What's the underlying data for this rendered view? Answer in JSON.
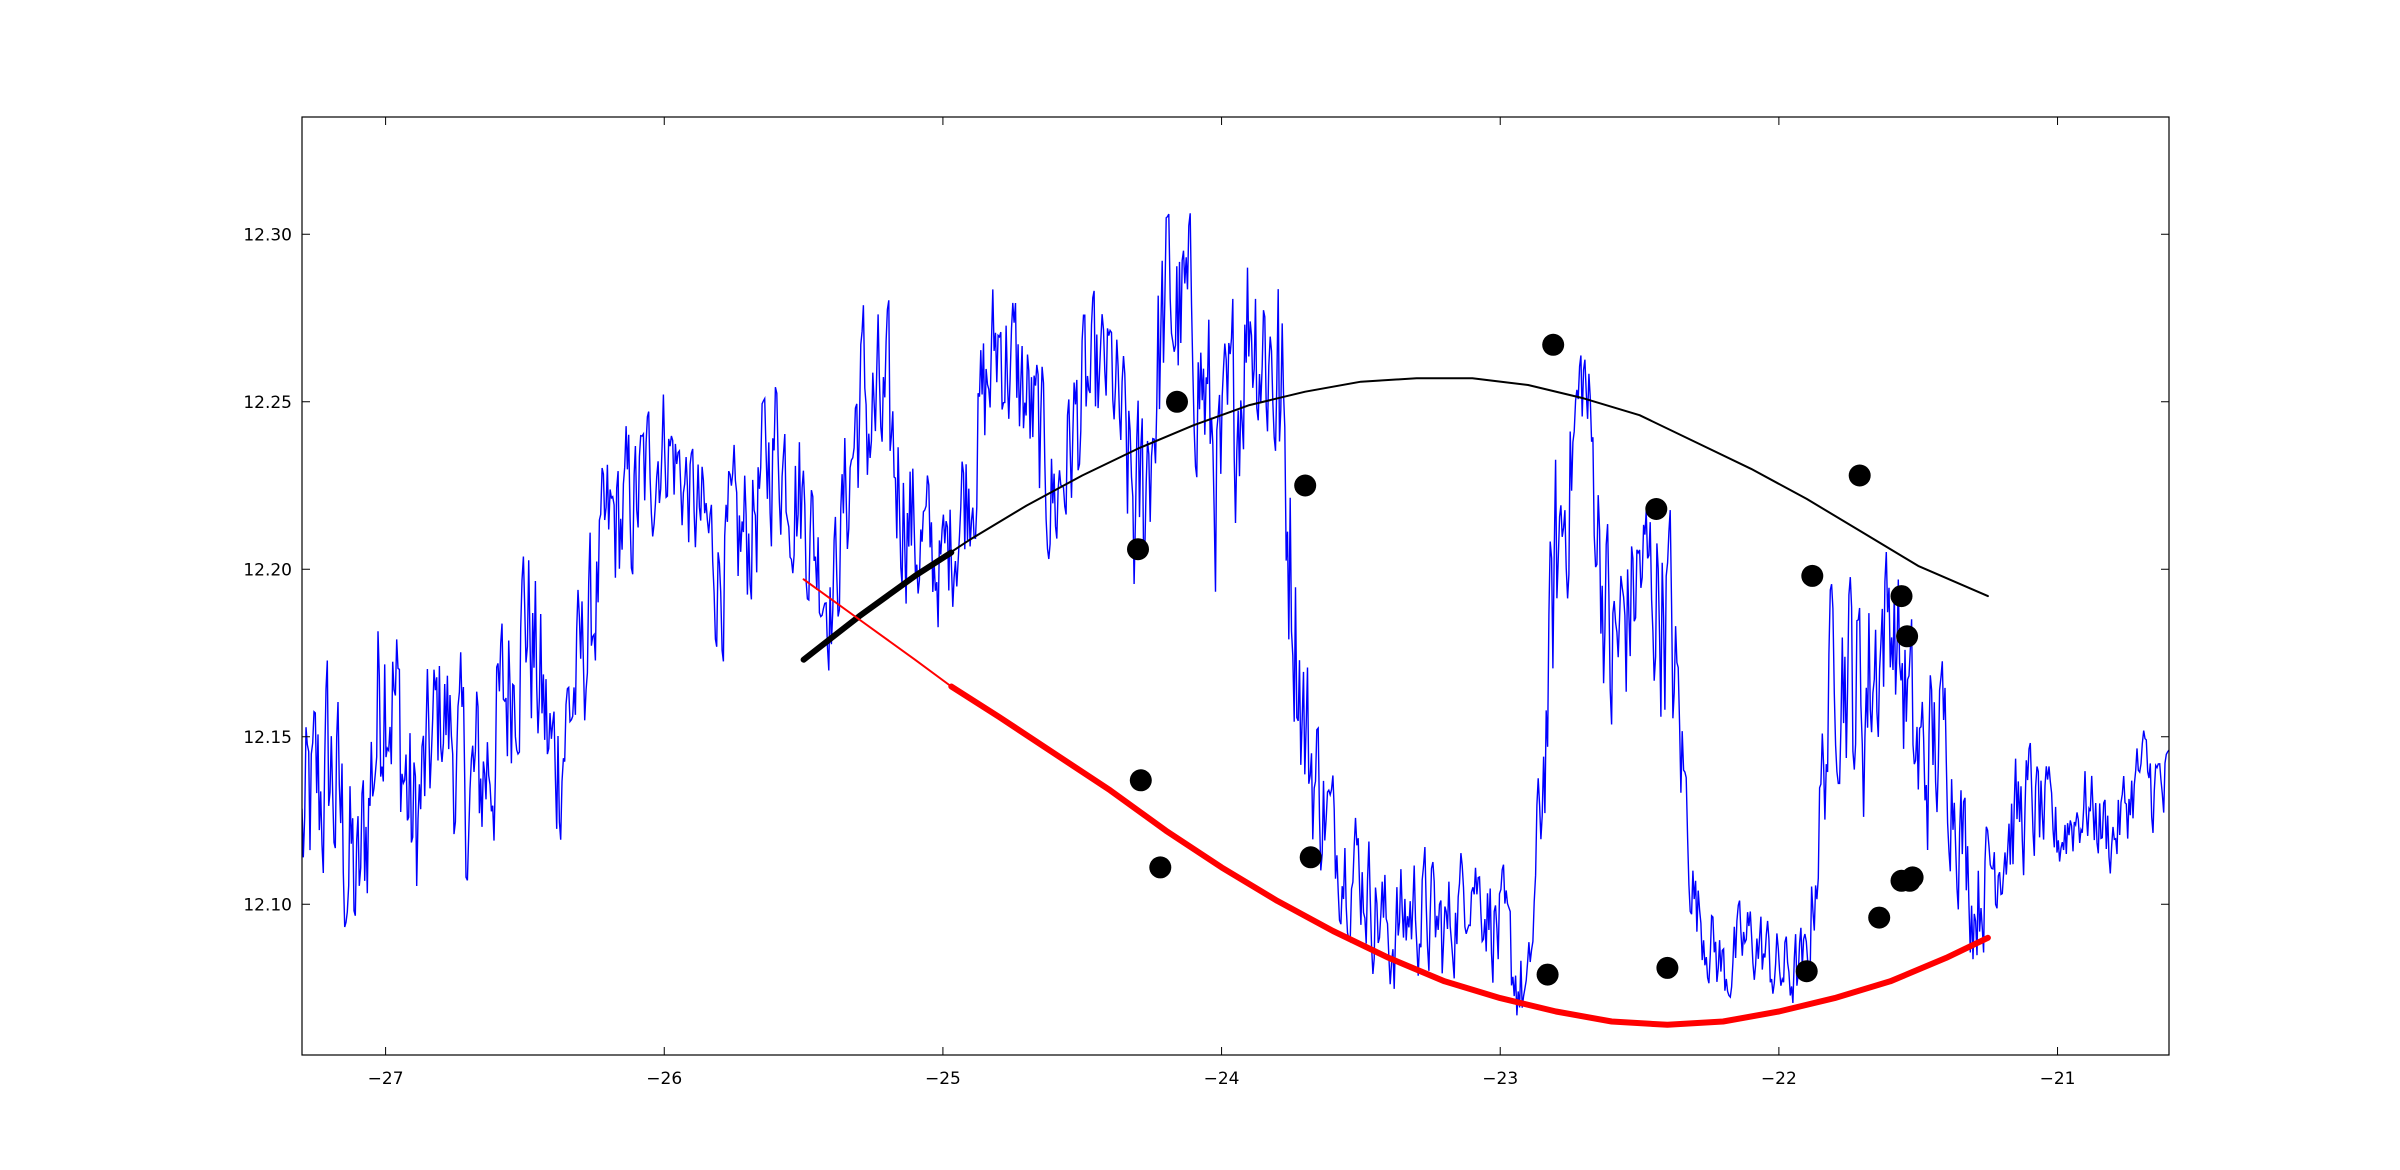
{
  "chart_data": {
    "type": "line",
    "title": "",
    "xlabel": "",
    "ylabel": "",
    "xlim": [
      -27.3,
      -20.6
    ],
    "ylim": [
      12.055,
      12.335
    ],
    "grid": false,
    "legend": "none",
    "x_ticks": [
      -27,
      -26,
      -25,
      -24,
      -23,
      -22,
      -21
    ],
    "x_tick_labels": [
      "−27",
      "−26",
      "−25",
      "−24",
      "−23",
      "−22",
      "−21"
    ],
    "y_ticks": [
      12.1,
      12.15,
      12.2,
      12.25,
      12.3
    ],
    "y_tick_labels": [
      "12.10",
      "12.15",
      "12.20",
      "12.25",
      "12.30"
    ],
    "series": [
      {
        "kind": "noisy-line",
        "color": "#0000ff",
        "x": [
          -27.3,
          -27.2,
          -27.1,
          -27.0,
          -26.9,
          -26.8,
          -26.7,
          -26.6,
          -26.5,
          -26.4,
          -26.3,
          -26.2,
          -26.1,
          -26.0,
          -25.9,
          -25.8,
          -25.7,
          -25.6,
          -25.5,
          -25.4,
          -25.3,
          -25.2,
          -25.1,
          -25.0,
          -24.9,
          -24.8,
          -24.7,
          -24.6,
          -24.5,
          -24.4,
          -24.3,
          -24.2,
          -24.1,
          -24.0,
          -23.9,
          -23.8,
          -23.7,
          -23.6,
          -23.5,
          -23.4,
          -23.3,
          -23.2,
          -23.1,
          -23.0,
          -22.9,
          -22.8,
          -22.7,
          -22.6,
          -22.5,
          -22.4,
          -22.3,
          -22.2,
          -22.1,
          -22.0,
          -21.9,
          -21.8,
          -21.7,
          -21.6,
          -21.5,
          -21.4,
          -21.3,
          -21.2,
          -21.1,
          -21.0,
          -20.9,
          -20.8,
          -20.7,
          -20.6
        ],
        "y": [
          12.12,
          12.14,
          12.1,
          12.18,
          12.12,
          12.16,
          12.13,
          12.15,
          12.19,
          12.14,
          12.17,
          12.21,
          12.22,
          12.24,
          12.22,
          12.2,
          12.21,
          12.24,
          12.22,
          12.19,
          12.25,
          12.24,
          12.21,
          12.2,
          12.23,
          12.27,
          12.25,
          12.22,
          12.25,
          12.26,
          12.21,
          12.28,
          12.27,
          12.22,
          12.28,
          12.26,
          12.15,
          12.12,
          12.11,
          12.09,
          12.1,
          12.09,
          12.11,
          12.09,
          12.07,
          12.2,
          12.26,
          12.17,
          12.2,
          12.19,
          12.1,
          12.08,
          12.09,
          12.08,
          12.08,
          12.18,
          12.16,
          12.19,
          12.14,
          12.15,
          12.1,
          12.12,
          12.13,
          12.12,
          12.13,
          12.12,
          12.14,
          12.13
        ],
        "amplitude": [
          0.05,
          0.06,
          0.05,
          0.06,
          0.05,
          0.04,
          0.05,
          0.05,
          0.05,
          0.05,
          0.04,
          0.04,
          0.04,
          0.03,
          0.03,
          0.04,
          0.04,
          0.04,
          0.04,
          0.03,
          0.05,
          0.05,
          0.04,
          0.03,
          0.04,
          0.04,
          0.04,
          0.04,
          0.04,
          0.03,
          0.06,
          0.05,
          0.05,
          0.06,
          0.05,
          0.07,
          0.05,
          0.03,
          0.03,
          0.03,
          0.03,
          0.03,
          0.02,
          0.03,
          0.02,
          0.06,
          0.03,
          0.06,
          0.04,
          0.06,
          0.02,
          0.02,
          0.02,
          0.02,
          0.02,
          0.05,
          0.06,
          0.04,
          0.05,
          0.04,
          0.03,
          0.03,
          0.03,
          0.02,
          0.02,
          0.02,
          0.02,
          0.03
        ]
      },
      {
        "kind": "line",
        "color": "#000000",
        "x": [
          -25.5,
          -25.3,
          -25.1,
          -24.9,
          -24.7,
          -24.5,
          -24.3,
          -24.1,
          -23.9,
          -23.7,
          -23.5,
          -23.3,
          -23.1,
          -22.9,
          -22.7,
          -22.5,
          -22.3,
          -22.1,
          -21.9,
          -21.7,
          -21.5,
          -21.25
        ],
        "y": [
          12.173,
          12.186,
          12.198,
          12.209,
          12.219,
          12.228,
          12.236,
          12.243,
          12.249,
          12.253,
          12.256,
          12.257,
          12.257,
          12.255,
          12.251,
          12.246,
          12.238,
          12.23,
          12.221,
          12.211,
          12.201,
          12.192
        ]
      },
      {
        "kind": "thick-line",
        "color": "#000000",
        "x": [
          -25.5,
          -25.3,
          -25.1,
          -24.97
        ],
        "y": [
          12.173,
          12.186,
          12.198,
          12.205
        ]
      },
      {
        "kind": "line",
        "color": "#ff0000",
        "x": [
          -25.5,
          -25.3,
          -25.1,
          -24.97
        ],
        "y": [
          12.197,
          12.185,
          12.173,
          12.165
        ]
      },
      {
        "kind": "thick-line",
        "color": "#ff0000",
        "x": [
          -24.97,
          -24.8,
          -24.6,
          -24.4,
          -24.2,
          -24.0,
          -23.8,
          -23.6,
          -23.4,
          -23.2,
          -23.0,
          -22.8,
          -22.6,
          -22.4,
          -22.2,
          -22.0,
          -21.8,
          -21.6,
          -21.4,
          -21.25
        ],
        "y": [
          12.165,
          12.156,
          12.145,
          12.134,
          12.122,
          12.111,
          12.101,
          12.092,
          12.084,
          12.077,
          12.072,
          12.068,
          12.065,
          12.064,
          12.065,
          12.068,
          12.072,
          12.077,
          12.084,
          12.09
        ]
      },
      {
        "kind": "markers",
        "color": "#000000",
        "x": [
          -24.3,
          -24.29,
          -24.22,
          -24.16,
          -23.7,
          -23.68,
          -22.83,
          -22.81,
          -22.44,
          -22.4,
          -21.9,
          -21.88,
          -21.71,
          -21.64,
          -21.56,
          -21.56,
          -21.54,
          -21.53,
          -21.52
        ],
        "y": [
          12.206,
          12.137,
          12.111,
          12.25,
          12.225,
          12.114,
          12.079,
          12.267,
          12.218,
          12.081,
          12.08,
          12.198,
          12.228,
          12.096,
          12.192,
          12.107,
          12.18,
          12.107,
          12.108
        ]
      }
    ]
  }
}
